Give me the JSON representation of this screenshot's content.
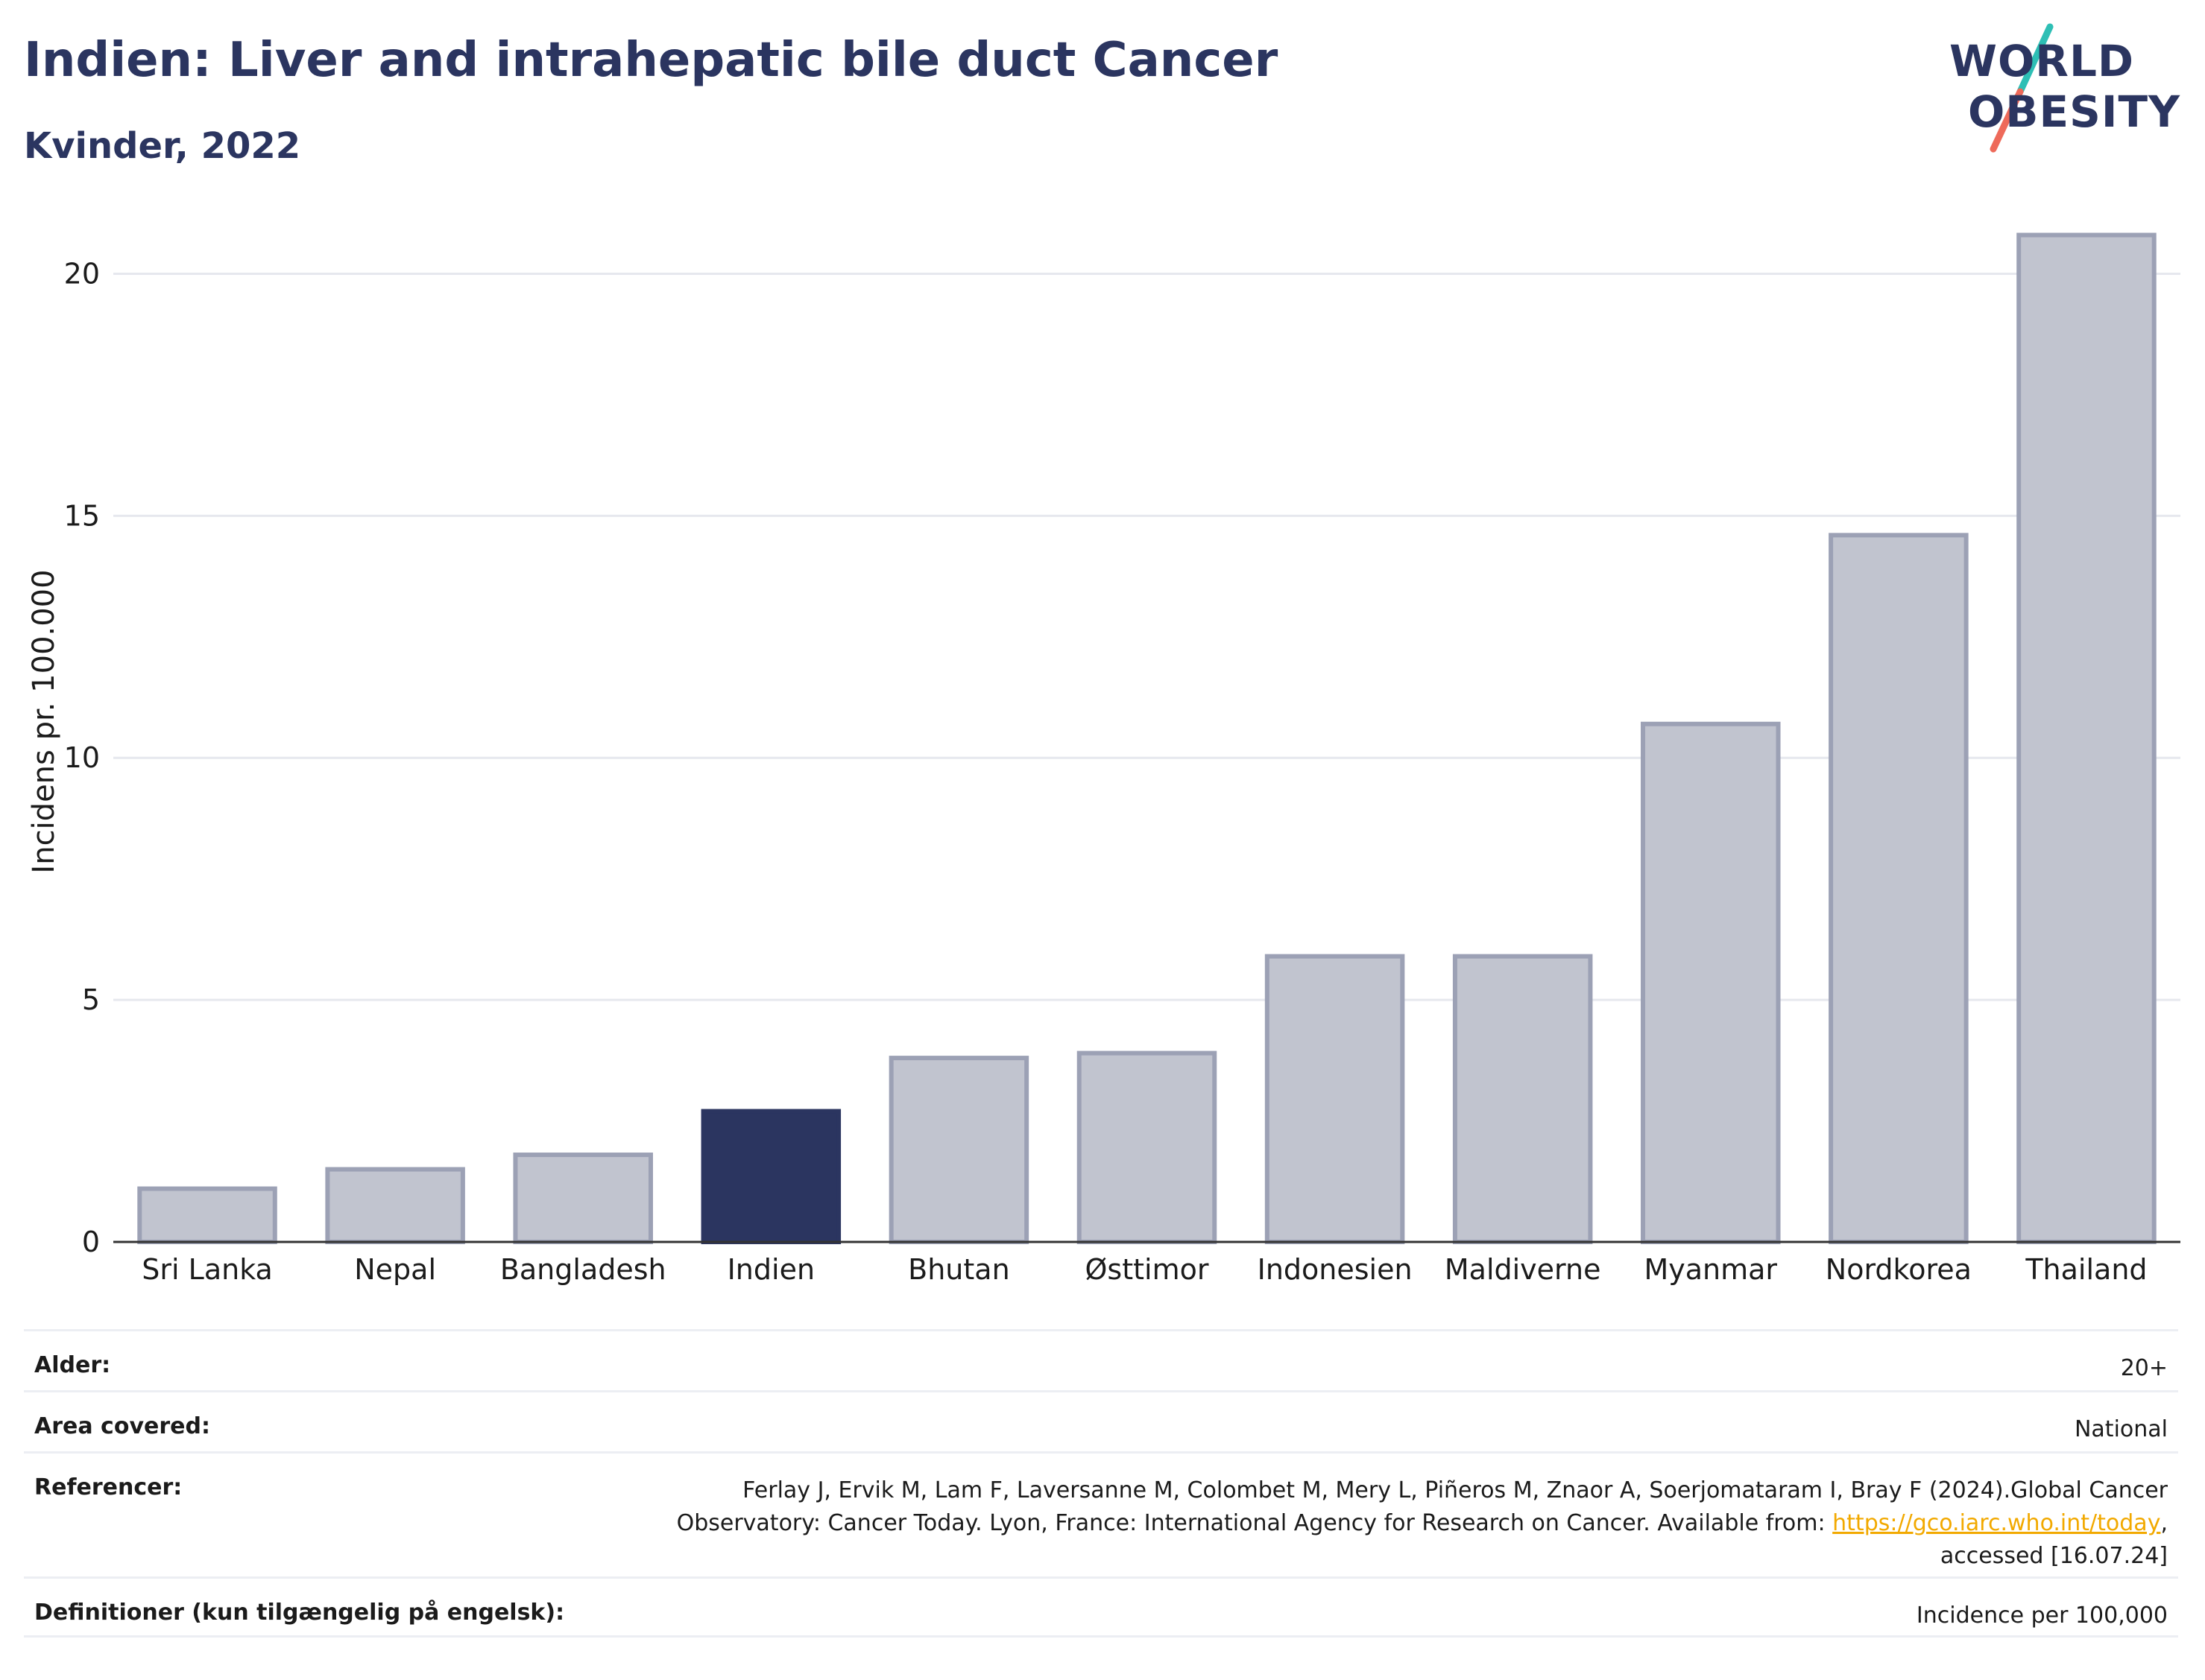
{
  "header": {
    "title": "Indien: Liver and intrahepatic bile duct Cancer",
    "subtitle": "Kvinder, 2022"
  },
  "logo": {
    "line1": "WORLD",
    "line2": "OBESITY",
    "accent_colors": [
      "#2ebfb5",
      "#ee6a5a"
    ]
  },
  "chart_data": {
    "type": "bar",
    "categories": [
      "Sri Lanka",
      "Nepal",
      "Bangladesh",
      "Indien",
      "Bhutan",
      "Østtimor",
      "Indonesien",
      "Maldiverne",
      "Myanmar",
      "Nordkorea",
      "Thailand"
    ],
    "values": [
      1.1,
      1.5,
      1.8,
      2.7,
      3.8,
      3.9,
      5.9,
      5.9,
      10.7,
      14.6,
      20.8
    ],
    "highlight": "Indien",
    "ylabel": "Incidens pr. 100.000",
    "ylim": [
      0,
      21.5
    ],
    "yticks": [
      0,
      5,
      10,
      15,
      20
    ],
    "grid": true,
    "colors": {
      "default": "#c1c4cf",
      "default_border": "#9ca1b5",
      "highlight": "#2b3560"
    }
  },
  "meta": {
    "rows": [
      {
        "key": "Alder:",
        "value": "20+"
      },
      {
        "key": "Area covered:",
        "value": "National"
      },
      {
        "key": "Referencer:",
        "value_line1": "Ferlay J, Ervik M, Lam F, Laversanne M, Colombet M, Mery L, Piñeros M, Znaor A, Soerjomataram I, Bray F (2024).Global Cancer",
        "value_line2_pre": "Observatory: Cancer Today. Lyon, France: International Agency for Research on Cancer. Available from: ",
        "link": "https://gco.iarc.who.int/today",
        "value_line2_post": ",",
        "value_line3": "accessed [16.07.24]"
      },
      {
        "key": "Definitioner (kun tilgængelig på engelsk):",
        "value": "Incidence per 100,000"
      }
    ]
  }
}
